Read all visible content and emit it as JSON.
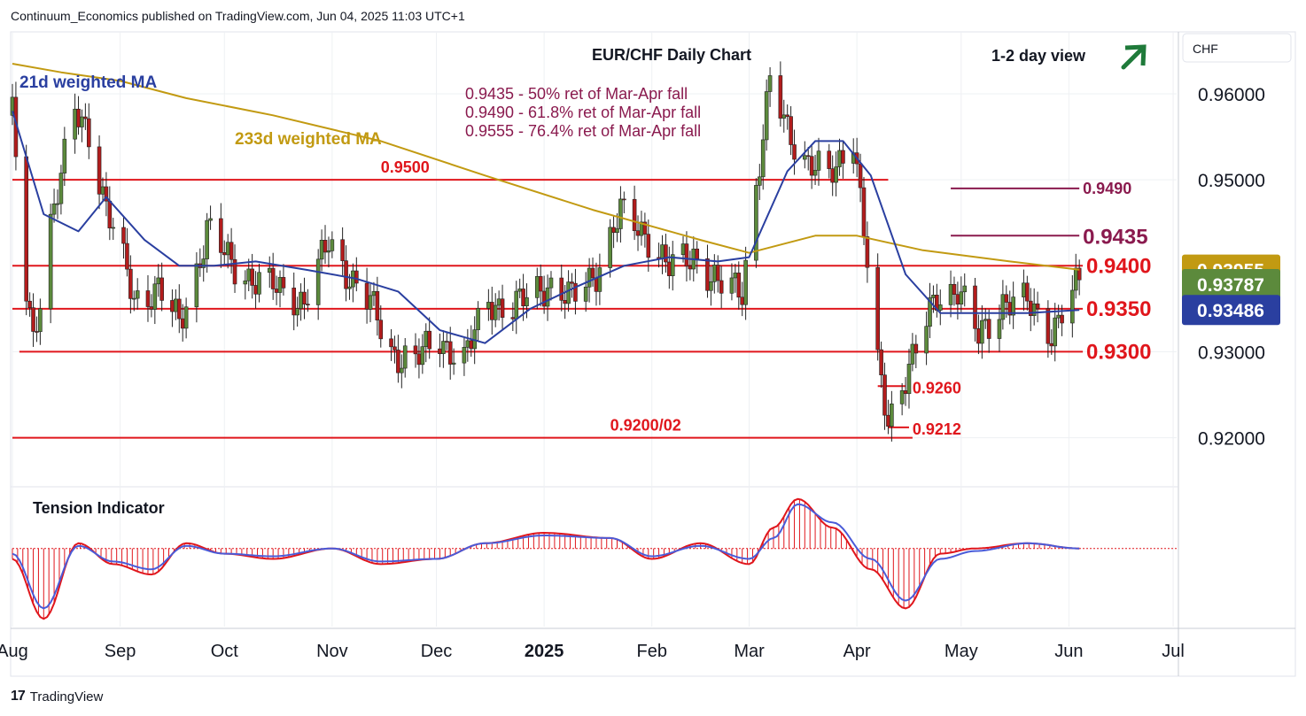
{
  "header": {
    "publisher_line": "Continuum_Economics published on TradingView.com, Jun 04, 2025 11:03 UTC+1"
  },
  "footer": {
    "brand": "TradingView",
    "logo_text": "17"
  },
  "colors": {
    "levels": "#e0161c",
    "ma21": "#2a3fa0",
    "ma233": "#c29a12",
    "retrace": "#8a1a4e",
    "arrow": "#1f7a3a",
    "candle_up": "#5c8a3c",
    "candle_down": "#b21c1c",
    "grid": "#eef0f3",
    "badge_ma233": "#c29a12",
    "badge_last": "#5c8a3c",
    "badge_ma21": "#2a3fa0"
  },
  "chart_data": [
    {
      "type": "line",
      "title": "EUR/CHF Daily Chart",
      "subtitle": "1-2 day view",
      "outlook_icon": "arrow-up-right-icon",
      "price_axis_title": "CHF",
      "yticks": [
        "0.92000",
        "0.93000",
        "0.95000",
        "0.96000"
      ],
      "ylim": [
        0.9145,
        0.967
      ],
      "x_labels": [
        "Aug",
        "Sep",
        "Oct",
        "Nov",
        "Dec",
        "2025",
        "Feb",
        "Mar",
        "Apr",
        "May",
        "Jun",
        "Jul"
      ],
      "x_label_dates": [
        "2024-08-01",
        "2024-09-01",
        "2024-10-01",
        "2024-11-01",
        "2024-12-01",
        "2025-01-01",
        "2025-02-01",
        "2025-03-01",
        "2025-04-01",
        "2025-05-01",
        "2025-06-01",
        "2025-07-01"
      ],
      "x_range": [
        "2024-08-01",
        "2025-07-02"
      ],
      "price_badges": [
        {
          "label": "0.93955",
          "value": 0.93955,
          "series": "233d weighted MA"
        },
        {
          "label": "0.93787",
          "value": 0.93787,
          "series": "last"
        },
        {
          "label": "0.93486",
          "value": 0.93486,
          "series": "21d weighted MA"
        }
      ],
      "levels": [
        {
          "label": "0.9500",
          "value": 0.95,
          "from": "2024-08-01",
          "to": "2025-04-10",
          "label_at": "2024-11-15"
        },
        {
          "label": "0.9400",
          "value": 0.94,
          "from": "2024-08-01",
          "to": "2025-06-05",
          "label_at": "2025-06-06"
        },
        {
          "label": "0.9350",
          "value": 0.935,
          "from": "2024-08-01",
          "to": "2025-06-05",
          "label_at": "2025-06-06"
        },
        {
          "label": "0.9300",
          "value": 0.93,
          "from": "2024-08-03",
          "to": "2025-06-05",
          "label_at": "2025-06-06"
        },
        {
          "label": "0.9260",
          "value": 0.926,
          "from": "2025-04-07",
          "to": "2025-04-15",
          "label_at": "2025-04-17"
        },
        {
          "label": "0.9212",
          "value": 0.9212,
          "from": "2025-04-10",
          "to": "2025-04-16",
          "label_at": "2025-04-17"
        },
        {
          "label": "0.9200/02",
          "value": 0.92,
          "from": "2024-08-01",
          "to": "2025-04-17",
          "label_at": "2025-01-20"
        }
      ],
      "retracement_lines": [
        {
          "label": "0.9490",
          "value": 0.949,
          "from": "2025-04-28",
          "to": "2025-06-04"
        },
        {
          "label": "0.9435",
          "value": 0.9435,
          "from": "2025-04-28",
          "to": "2025-06-04"
        }
      ],
      "annotations": [
        "0.9435 - 50% ret of Mar-Apr fall",
        "0.9490 - 61.8% ret of Mar-Apr fall",
        "0.9555 - 76.4% ret of Mar-Apr fall"
      ],
      "series": [
        {
          "name": "EUR/CHF",
          "kind": "close",
          "x": [
            "2024-08-01",
            "2024-08-05",
            "2024-08-07",
            "2024-08-12",
            "2024-08-19",
            "2024-08-23",
            "2024-08-28",
            "2024-09-05",
            "2024-09-12",
            "2024-09-18",
            "2024-09-23",
            "2024-09-26",
            "2024-10-03",
            "2024-10-10",
            "2024-10-17",
            "2024-10-24",
            "2024-10-31",
            "2024-11-06",
            "2024-11-12",
            "2024-11-18",
            "2024-11-25",
            "2024-12-02",
            "2024-12-09",
            "2024-12-16",
            "2024-12-23",
            "2025-01-02",
            "2025-01-09",
            "2025-01-16",
            "2025-01-23",
            "2025-01-30",
            "2025-02-06",
            "2025-02-13",
            "2025-02-20",
            "2025-02-27",
            "2025-03-04",
            "2025-03-07",
            "2025-03-12",
            "2025-03-18",
            "2025-03-24",
            "2025-03-31",
            "2025-04-03",
            "2025-04-07",
            "2025-04-10",
            "2025-04-14",
            "2025-04-18",
            "2025-04-24",
            "2025-04-30",
            "2025-05-06",
            "2025-05-13",
            "2025-05-20",
            "2025-05-27",
            "2025-06-04"
          ],
          "values": [
            0.9575,
            0.9365,
            0.931,
            0.9455,
            0.9575,
            0.9555,
            0.947,
            0.936,
            0.9375,
            0.933,
            0.9395,
            0.9445,
            0.94,
            0.9385,
            0.937,
            0.936,
            0.9425,
            0.939,
            0.9355,
            0.93,
            0.929,
            0.9315,
            0.929,
            0.936,
            0.935,
            0.938,
            0.936,
            0.9395,
            0.946,
            0.944,
            0.9395,
            0.9415,
            0.9375,
            0.9375,
            0.952,
            0.961,
            0.956,
            0.952,
            0.95,
            0.9555,
            0.944,
            0.928,
            0.922,
            0.9265,
            0.93,
            0.9365,
            0.9375,
            0.9315,
            0.936,
            0.9355,
            0.9325,
            0.9379
          ]
        },
        {
          "name": "21d weighted MA",
          "x": [
            "2024-08-01",
            "2024-08-10",
            "2024-08-20",
            "2024-08-28",
            "2024-09-08",
            "2024-09-18",
            "2024-09-28",
            "2024-10-10",
            "2024-10-25",
            "2024-11-08",
            "2024-11-20",
            "2024-12-02",
            "2024-12-15",
            "2024-12-28",
            "2025-01-10",
            "2025-01-24",
            "2025-02-06",
            "2025-02-20",
            "2025-03-01",
            "2025-03-12",
            "2025-03-20",
            "2025-03-28",
            "2025-04-05",
            "2025-04-15",
            "2025-04-25",
            "2025-05-05",
            "2025-05-20",
            "2025-06-04"
          ],
          "values": [
            0.958,
            0.946,
            0.944,
            0.948,
            0.943,
            0.94,
            0.94,
            0.9405,
            0.9395,
            0.9385,
            0.937,
            0.9325,
            0.931,
            0.935,
            0.9375,
            0.94,
            0.941,
            0.9405,
            0.941,
            0.951,
            0.9545,
            0.9545,
            0.9505,
            0.939,
            0.9345,
            0.9345,
            0.9345,
            0.93486
          ]
        },
        {
          "name": "233d weighted MA",
          "x": [
            "2024-08-01",
            "2024-08-15",
            "2024-09-01",
            "2024-09-20",
            "2024-10-15",
            "2024-11-15",
            "2024-12-15",
            "2025-01-15",
            "2025-02-15",
            "2025-03-01",
            "2025-03-20",
            "2025-04-01",
            "2025-04-20",
            "2025-05-15",
            "2025-06-04"
          ],
          "values": [
            0.9635,
            0.9625,
            0.9615,
            0.9595,
            0.9575,
            0.9545,
            0.9505,
            0.9465,
            0.943,
            0.9415,
            0.9435,
            0.9435,
            0.9418,
            0.9405,
            0.93955
          ]
        }
      ],
      "tension_indicator": {
        "title": "Tension Indicator",
        "x": [
          "2024-08-01",
          "2024-08-10",
          "2024-08-20",
          "2024-08-30",
          "2024-09-10",
          "2024-09-20",
          "2024-10-01",
          "2024-10-15",
          "2024-11-01",
          "2024-11-15",
          "2024-12-01",
          "2024-12-15",
          "2025-01-01",
          "2025-01-20",
          "2025-02-01",
          "2025-02-15",
          "2025-03-01",
          "2025-03-08",
          "2025-03-15",
          "2025-03-25",
          "2025-04-05",
          "2025-04-15",
          "2025-04-25",
          "2025-05-05",
          "2025-05-20",
          "2025-06-04"
        ],
        "fast": [
          -0.2,
          -1.35,
          0.1,
          -0.3,
          -0.5,
          0.1,
          -0.1,
          -0.2,
          0.0,
          -0.3,
          -0.2,
          0.1,
          0.3,
          0.2,
          -0.2,
          0.1,
          -0.3,
          0.4,
          0.95,
          0.4,
          -0.4,
          -1.15,
          -0.1,
          0.0,
          0.1,
          0.0
        ],
        "slow": [
          -0.1,
          -1.15,
          0.05,
          -0.25,
          -0.4,
          0.05,
          -0.1,
          -0.15,
          0.0,
          -0.25,
          -0.2,
          0.1,
          0.25,
          0.2,
          -0.15,
          0.05,
          -0.2,
          0.2,
          0.85,
          0.5,
          -0.2,
          -1.0,
          -0.2,
          -0.05,
          0.1,
          0.0
        ],
        "ylim": [
          -1.5,
          1.15
        ]
      }
    }
  ]
}
